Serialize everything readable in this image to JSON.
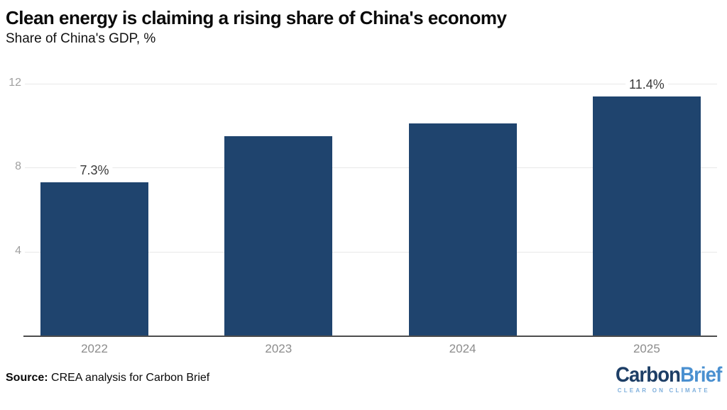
{
  "chart_data": {
    "type": "bar",
    "title": "Clean energy is claiming a rising share of China's economy",
    "subtitle": "Share of China's GDP, %",
    "categories": [
      "2022",
      "2023",
      "2024",
      "2025"
    ],
    "values": [
      7.3,
      9.5,
      10.1,
      11.4
    ],
    "bar_labels": [
      "7.3%",
      "",
      "",
      "11.4%"
    ],
    "ylim": [
      0,
      12
    ],
    "yticks": [
      4,
      8,
      12
    ],
    "grid": "horizontal",
    "legend": "none",
    "bar_color": "#1f446e",
    "xlabel": "",
    "ylabel": "Share of China's GDP, %"
  },
  "footer": {
    "source_label": "Source:",
    "source_text": " CREA analysis for Carbon Brief",
    "logo": {
      "part1": "Carbon",
      "part2": "Brief",
      "tagline": "CLEAR ON CLIMATE",
      "color1": "#1d3e66",
      "color2": "#4a90d0",
      "tagline_color": "#7fb0dd"
    }
  }
}
